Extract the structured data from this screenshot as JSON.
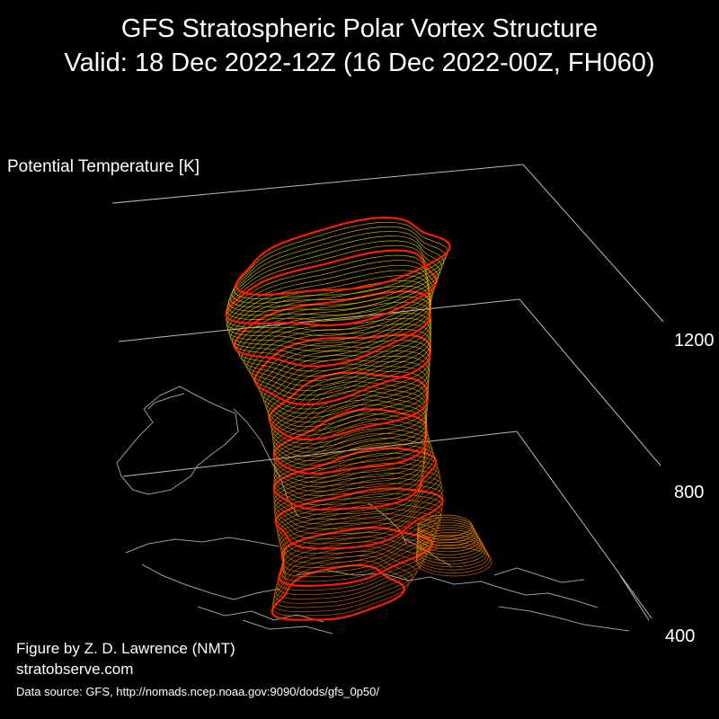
{
  "title_line1": "GFS Stratospheric Polar Vortex Structure",
  "title_line2": "Valid: 18 Dec 2022-12Z  (16 Dec 2022-00Z, FH060)",
  "chart_data": {
    "type": "3d-isosurface",
    "z_axis_label": "Potential Temperature [K]",
    "z_ticks": [
      400,
      800,
      1200
    ],
    "z_tick_labels": [
      "400",
      "800",
      "1200"
    ],
    "zlim": [
      400,
      1500
    ],
    "grid": true,
    "colors": {
      "background": "#000000",
      "highlight_contour": "#ff1a00",
      "low_level_contour": "#e06a00",
      "high_level_contour": "#e8d000",
      "coastline": "#9a9a9a",
      "axis_lines": "#bbbbbb"
    }
  },
  "credits": {
    "author": "Figure by Z. D. Lawrence (NMT)",
    "website": "stratobserve.com",
    "data_source": "Data source: GFS, http://nomads.ncep.noaa.gov:9090/dods/gfs_0p50/"
  }
}
